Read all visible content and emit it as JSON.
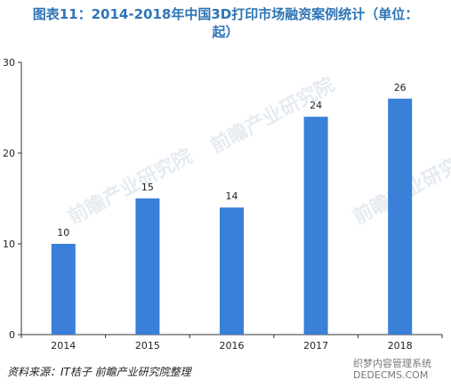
{
  "chart_data": {
    "type": "bar",
    "title": "图表11：2014-2018年中国3D打印市场融资案例统计（单位：起）",
    "categories": [
      "2014",
      "2015",
      "2016",
      "2017",
      "2018"
    ],
    "values": [
      10,
      15,
      14,
      24,
      26
    ],
    "data_labels": [
      "10",
      "15",
      "14",
      "24",
      "26"
    ],
    "ylim": [
      0,
      30
    ],
    "yticks": [
      0,
      10,
      20,
      30
    ],
    "grid": false,
    "bar_color": "#3a7fd8"
  },
  "title_line1": "图表11：2014-2018年中国3D打印市场融资案例统计（单位：",
  "title_line2": "起）",
  "source": "资料来源：IT桔子 前瞻产业研究院整理",
  "watermark": "前瞻产业研究院",
  "corner_line1": "织梦内容管理系统",
  "corner_line2": "DEDECMS.COM"
}
